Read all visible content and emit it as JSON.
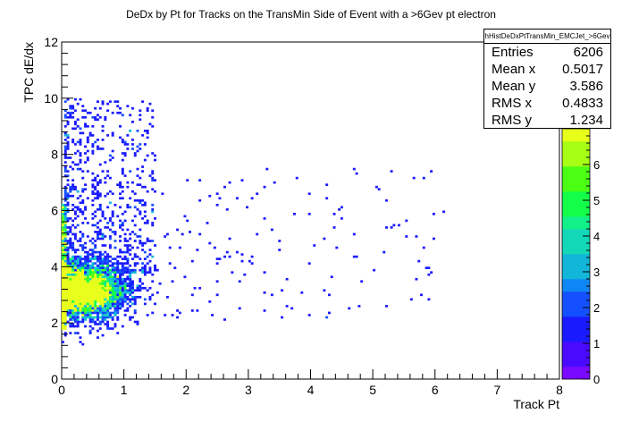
{
  "chart_data": {
    "type": "heatmap",
    "title": "DeDx by Pt for Tracks on the TransMin Side of Event with a >6Gev pt electron",
    "xlabel": "Track Pt",
    "ylabel": "TPC dE/dx",
    "xlim": [
      0,
      8
    ],
    "ylim": [
      0,
      12
    ],
    "x_ticks": [
      "0",
      "1",
      "2",
      "3",
      "4",
      "5",
      "6",
      "7",
      "8"
    ],
    "y_ticks": [
      "0",
      "2",
      "4",
      "6",
      "8",
      "10",
      "12"
    ],
    "colorbar": {
      "range": [
        0,
        7
      ],
      "ticks": [
        "0",
        "1",
        "2",
        "3",
        "4",
        "5",
        "6"
      ]
    },
    "stats": {
      "name": "hHistDeDxPtTransMin_EMCJet_>6Gev",
      "entries_label": "Entries",
      "entries": "6206",
      "meanx_label": "Mean x",
      "meanx": "0.5017",
      "meany_label": "Mean y",
      "meany": "3.586",
      "rmsx_label": "RMS x",
      "rmsx": "0.4833",
      "rmsy_label": "RMS y",
      "rmsy": "1.234"
    },
    "density_model": {
      "core": {
        "x_mean": 0.35,
        "y_mean": 2.9,
        "x_sigma": 0.35,
        "y_sigma": 0.55,
        "fraction": 0.7
      },
      "edge_band": {
        "x_range": [
          0.0,
          0.06
        ],
        "y_range": [
          1.8,
          6.2
        ],
        "fraction": 0.12
      },
      "tail": {
        "x_range": [
          0.05,
          1.5
        ],
        "y_range": [
          3.8,
          10.0
        ],
        "fraction": 0.14
      },
      "sparse": {
        "x_range": [
          0.5,
          6.2
        ],
        "y_range": [
          2.0,
          7.5
        ],
        "fraction": 0.04
      }
    },
    "colors": {
      "low": "#4a0aff",
      "mid": "#12d8b8",
      "high": "#e8ff1a"
    }
  }
}
